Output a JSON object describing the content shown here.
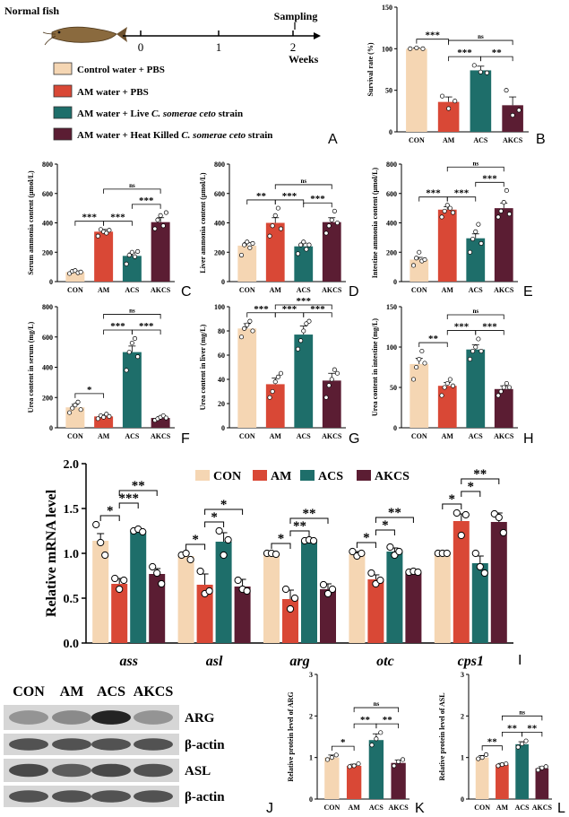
{
  "colors": {
    "CON": "#f5d6b3",
    "AM": "#d94836",
    "ACS": "#1e6e6a",
    "AKCS": "#5b1d33"
  },
  "schematic": {
    "fish_label": "Normal fish",
    "sampling_label": "Sampling",
    "weeks_label": "Weeks",
    "ticks": [
      "0",
      "1",
      "2"
    ],
    "legend": [
      {
        "key": "CON",
        "text": "Control water + PBS"
      },
      {
        "key": "AM",
        "text": "AM water + PBS"
      },
      {
        "key": "ACS",
        "text": "AM water + Live C. somerae ceto strain"
      },
      {
        "key": "AKCS",
        "text": "AM water + Heat Killed C. somerae ceto strain"
      }
    ]
  },
  "blot": {
    "lane_labels": [
      "CON",
      "AM",
      "ACS",
      "AKCS"
    ],
    "band_labels": [
      "ARG",
      "β-actin",
      "ASL",
      "β-actin"
    ]
  },
  "chart_data": [
    {
      "id": "B",
      "panel_label": "B",
      "type": "bar",
      "categories": [
        "CON",
        "AM",
        "ACS",
        "AKCS"
      ],
      "values": [
        100,
        36,
        74,
        32
      ],
      "errors": [
        1,
        6,
        5,
        10
      ],
      "points": [
        [
          100,
          101,
          100
        ],
        [
          43,
          28,
          37
        ],
        [
          80,
          72,
          71
        ],
        [
          50,
          20,
          26
        ]
      ],
      "ylabel": "Survival rate (%)",
      "ylim": [
        0,
        150
      ],
      "yticks": [
        0,
        50,
        100,
        150
      ],
      "sig": [
        "***",
        "***",
        "**",
        "ns"
      ]
    },
    {
      "id": "C",
      "panel_label": "C",
      "type": "bar",
      "categories": [
        "CON",
        "AM",
        "ACS",
        "AKCS"
      ],
      "values": [
        65,
        340,
        175,
        405
      ],
      "errors": [
        5,
        15,
        20,
        30
      ],
      "points": [
        [
          55,
          70,
          75,
          60,
          65
        ],
        [
          310,
          355,
          340,
          330,
          350
        ],
        [
          120,
          180,
          200,
          170,
          205
        ],
        [
          360,
          420,
          450,
          380,
          470
        ]
      ],
      "ylabel": "Serum ammonia content (μmol/L)",
      "ylim": [
        0,
        800
      ],
      "yticks": [
        0,
        200,
        400,
        600,
        800
      ],
      "sig": [
        "***",
        "***",
        "***",
        "ns"
      ]
    },
    {
      "id": "D",
      "panel_label": "D",
      "type": "bar",
      "categories": [
        "CON",
        "AM",
        "ACS",
        "AKCS"
      ],
      "values": [
        245,
        400,
        240,
        405
      ],
      "errors": [
        20,
        35,
        22,
        30
      ],
      "points": [
        [
          180,
          250,
          270,
          230,
          260
        ],
        [
          310,
          380,
          450,
          500,
          360
        ],
        [
          190,
          250,
          270,
          220,
          250
        ],
        [
          330,
          380,
          420,
          480,
          400
        ]
      ],
      "ylabel": "Liver ammonia content (μmol/L)",
      "ylim": [
        0,
        800
      ],
      "yticks": [
        0,
        200,
        400,
        600,
        800
      ],
      "sig": [
        "**",
        "***",
        "***",
        "ns"
      ]
    },
    {
      "id": "E",
      "panel_label": "E",
      "type": "bar",
      "categories": [
        "CON",
        "AM",
        "ACS",
        "AKCS"
      ],
      "values": [
        150,
        490,
        295,
        500
      ],
      "errors": [
        15,
        20,
        30,
        35
      ],
      "points": [
        [
          110,
          160,
          200,
          140,
          150
        ],
        [
          440,
          480,
          520,
          500,
          470
        ],
        [
          200,
          290,
          340,
          390,
          260
        ],
        [
          440,
          480,
          540,
          620,
          460
        ]
      ],
      "ylabel": "Intestine ammonia content (μmol/L)",
      "ylim": [
        0,
        800
      ],
      "yticks": [
        0,
        200,
        400,
        600,
        800
      ],
      "sig": [
        "***",
        "***",
        "***",
        "ns"
      ]
    },
    {
      "id": "F",
      "panel_label": "F",
      "type": "bar",
      "categories": [
        "CON",
        "AM",
        "ACS",
        "AKCS"
      ],
      "values": [
        135,
        75,
        500,
        65
      ],
      "errors": [
        20,
        10,
        40,
        8
      ],
      "points": [
        [
          100,
          130,
          150,
          170,
          120
        ],
        [
          60,
          80,
          70,
          90,
          75
        ],
        [
          380,
          500,
          560,
          590,
          470
        ],
        [
          50,
          60,
          70,
          80,
          65
        ]
      ],
      "ylabel": "Urea content in serum (mg/L)",
      "ylim": [
        0,
        800
      ],
      "yticks": [
        0,
        200,
        400,
        600,
        800
      ],
      "sig": [
        "*",
        "***",
        "***",
        "ns"
      ]
    },
    {
      "id": "G",
      "panel_label": "G",
      "type": "bar",
      "categories": [
        "CON",
        "AM",
        "ACS",
        "AKCS"
      ],
      "values": [
        82,
        36,
        77,
        39
      ],
      "errors": [
        4,
        5,
        7,
        6
      ],
      "points": [
        [
          75,
          82,
          85,
          88,
          80
        ],
        [
          25,
          30,
          38,
          42,
          45
        ],
        [
          65,
          72,
          80,
          86,
          88
        ],
        [
          25,
          35,
          40,
          48,
          45
        ]
      ],
      "ylabel": "Urea content in liver (mg/L)",
      "ylim": [
        0,
        100
      ],
      "yticks": [
        0,
        20,
        40,
        60,
        80,
        100
      ],
      "sig": [
        "***",
        "***",
        "***",
        "***"
      ]
    },
    {
      "id": "H",
      "panel_label": "H",
      "type": "bar",
      "categories": [
        "CON",
        "AM",
        "ACS",
        "AKCS"
      ],
      "values": [
        79,
        52,
        97,
        48
      ],
      "errors": [
        7,
        4,
        6,
        4
      ],
      "points": [
        [
          60,
          75,
          85,
          95,
          80
        ],
        [
          40,
          50,
          55,
          60,
          52
        ],
        [
          85,
          95,
          100,
          110,
          95
        ],
        [
          40,
          45,
          50,
          55,
          50
        ]
      ],
      "ylabel": "Urea content in intestine (mg/L)",
      "ylim": [
        0,
        150
      ],
      "yticks": [
        0,
        50,
        100,
        150
      ],
      "sig": [
        "**",
        "***",
        "***",
        "ns"
      ]
    },
    {
      "id": "I",
      "panel_label": "I",
      "type": "grouped_bar",
      "groups": [
        "ass",
        "asl",
        "arg",
        "otc",
        "cps1"
      ],
      "series": [
        {
          "name": "CON",
          "values": [
            1.14,
            0.97,
            1.0,
            0.99,
            1.0
          ],
          "errors": [
            0.08,
            0.03,
            0.01,
            0.03,
            0.01
          ],
          "points": [
            [
              1.32,
              1.12,
              0.98
            ],
            [
              0.98,
              1.0,
              0.93
            ],
            [
              1.0,
              1.0,
              0.99
            ],
            [
              1.02,
              0.97,
              1.0
            ],
            [
              1.0,
              1.0,
              1.0
            ]
          ]
        },
        {
          "name": "AM",
          "values": [
            0.66,
            0.65,
            0.49,
            0.71,
            1.36
          ],
          "errors": [
            0.06,
            0.12,
            0.1,
            0.05,
            0.08
          ],
          "points": [
            [
              0.72,
              0.6,
              0.7
            ],
            [
              0.8,
              0.55,
              0.58
            ],
            [
              0.6,
              0.38,
              0.5
            ],
            [
              0.78,
              0.66,
              0.7
            ],
            [
              1.45,
              1.2,
              1.43
            ]
          ]
        },
        {
          "name": "ACS",
          "values": [
            1.25,
            1.13,
            1.14,
            1.02,
            0.89
          ],
          "errors": [
            0.02,
            0.1,
            0.01,
            0.04,
            0.08
          ],
          "points": [
            [
              1.25,
              1.27,
              1.24
            ],
            [
              1.25,
              0.98,
              1.15
            ],
            [
              1.14,
              1.15,
              1.14
            ],
            [
              1.07,
              0.98,
              1.02
            ],
            [
              1.0,
              0.85,
              0.78
            ]
          ]
        },
        {
          "name": "AKCS",
          "values": [
            0.77,
            0.63,
            0.6,
            0.79,
            1.35
          ],
          "errors": [
            0.06,
            0.08,
            0.06,
            0.01,
            0.1
          ],
          "points": [
            [
              0.85,
              0.78,
              0.66
            ],
            [
              0.7,
              0.6,
              0.58
            ],
            [
              0.65,
              0.55,
              0.6
            ],
            [
              0.79,
              0.8,
              0.79
            ],
            [
              1.44,
              1.4,
              1.23
            ]
          ]
        }
      ],
      "ylabel": "Relative mRNA level",
      "ylim": [
        0,
        2.0
      ],
      "yticks": [
        "0.0",
        "0.5",
        "1.0",
        "1.5",
        "2.0"
      ],
      "sig": [
        [
          "*",
          "***",
          "**"
        ],
        [
          "*",
          "*",
          "*"
        ],
        [
          "*",
          "**",
          "**"
        ],
        [
          "*",
          "*",
          "**"
        ],
        [
          "*",
          "*",
          "**"
        ]
      ]
    },
    {
      "id": "K",
      "panel_label": "K",
      "type": "bar",
      "categories": [
        "CON",
        "AM",
        "ACS",
        "AKCS"
      ],
      "values": [
        1.0,
        0.8,
        1.42,
        0.87
      ],
      "errors": [
        0.06,
        0.04,
        0.15,
        0.07
      ],
      "points": [
        [
          0.95,
          1.0,
          1.06
        ],
        [
          0.78,
          0.8,
          0.85
        ],
        [
          1.3,
          1.45,
          1.6
        ],
        [
          0.8,
          0.9,
          0.95
        ]
      ],
      "ylabel": "Relative protein level of ARG",
      "ylim": [
        0,
        3
      ],
      "yticks": [
        0,
        1,
        2,
        3
      ],
      "sig": [
        "*",
        "**",
        "**",
        "ns"
      ]
    },
    {
      "id": "L",
      "panel_label": "L",
      "type": "bar",
      "categories": [
        "CON",
        "AM",
        "ACS",
        "AKCS"
      ],
      "values": [
        1.0,
        0.83,
        1.32,
        0.74
      ],
      "errors": [
        0.05,
        0.03,
        0.06,
        0.04
      ],
      "points": [
        [
          0.97,
          1.0,
          1.07
        ],
        [
          0.8,
          0.83,
          0.85
        ],
        [
          1.25,
          1.33,
          1.4
        ],
        [
          0.7,
          0.75,
          0.78
        ]
      ],
      "ylabel": "Relative protein level of ASL",
      "ylim": [
        0,
        3
      ],
      "yticks": [
        0,
        1,
        2,
        3
      ],
      "sig": [
        "**",
        "**",
        "**",
        "ns"
      ]
    }
  ]
}
